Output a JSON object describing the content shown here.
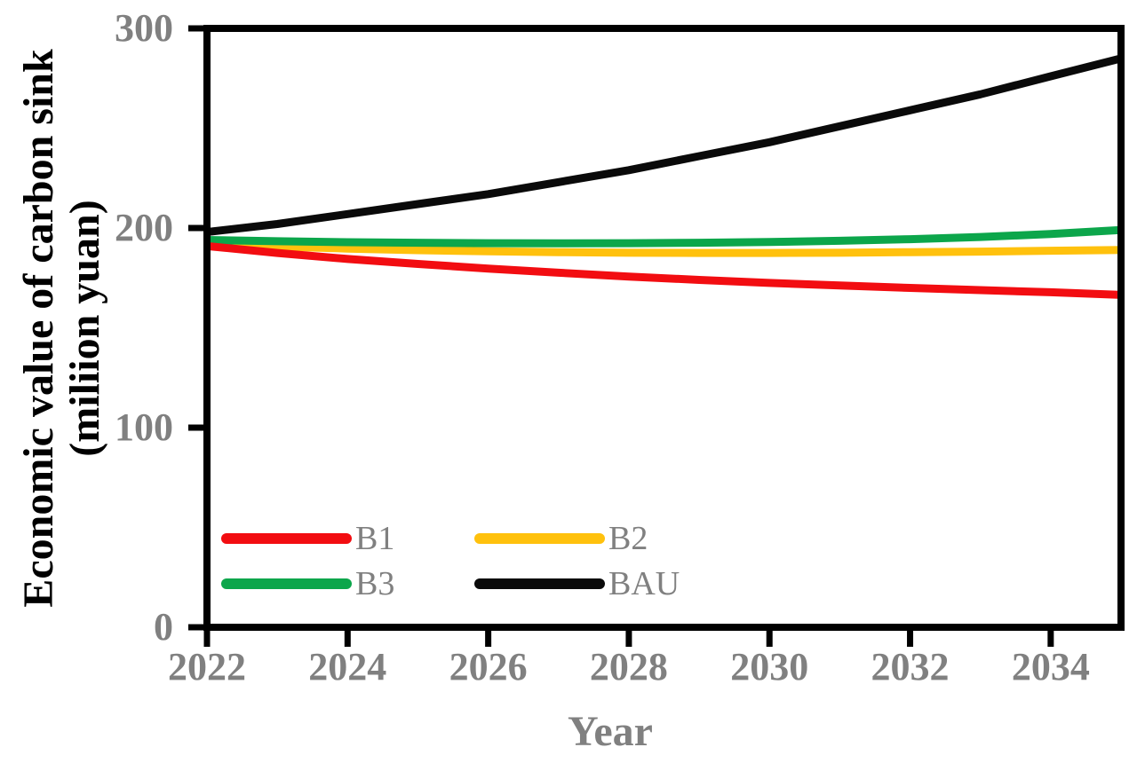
{
  "figure": {
    "background": "#ffffff",
    "axis_color": "#000000",
    "tick_label_color": "#808080",
    "axis_title_x_color": "#808080",
    "axis_title_y_color": "#000000",
    "legend_label_color": "#808080",
    "y_axis_title_line1": "Economic value of carbon sink",
    "y_axis_title_line2": "(miliion yuan)"
  },
  "chart_data": {
    "type": "line",
    "title": "",
    "xlabel": "Year",
    "ylabel": "Economic value of carbon sink (miliion yuan)",
    "xlim": [
      2022,
      2035
    ],
    "ylim": [
      0,
      300
    ],
    "x_ticks": [
      2022,
      2024,
      2026,
      2028,
      2030,
      2032,
      2034
    ],
    "y_ticks": [
      0,
      100,
      200,
      300
    ],
    "grid": false,
    "legend_position": "inside-lower-left-two-columns",
    "x": [
      2022,
      2023,
      2024,
      2025,
      2026,
      2027,
      2028,
      2029,
      2030,
      2031,
      2032,
      2033,
      2034,
      2035
    ],
    "series": [
      {
        "name": "B1",
        "color": "#F20D11",
        "values": [
          191,
          187.5,
          184.5,
          182,
          179.7,
          177.6,
          175.7,
          174,
          172.5,
          171.2,
          170,
          168.9,
          167.8,
          166.5
        ]
      },
      {
        "name": "B2",
        "color": "#FFC10D",
        "values": [
          192,
          190.7,
          189.7,
          188.9,
          188.3,
          187.9,
          187.6,
          187.5,
          187.5,
          187.6,
          187.9,
          188.2,
          188.6,
          189
        ]
      },
      {
        "name": "B3",
        "color": "#0CA64B",
        "values": [
          194,
          193.4,
          192.9,
          192.6,
          192.4,
          192.3,
          192.4,
          192.6,
          193,
          193.6,
          194.4,
          195.5,
          197,
          199
        ]
      },
      {
        "name": "BAU",
        "color": "#0a0a0a",
        "values": [
          198,
          202,
          207,
          212,
          217,
          223,
          229,
          236,
          243,
          251,
          259,
          267,
          276,
          285
        ]
      }
    ]
  }
}
